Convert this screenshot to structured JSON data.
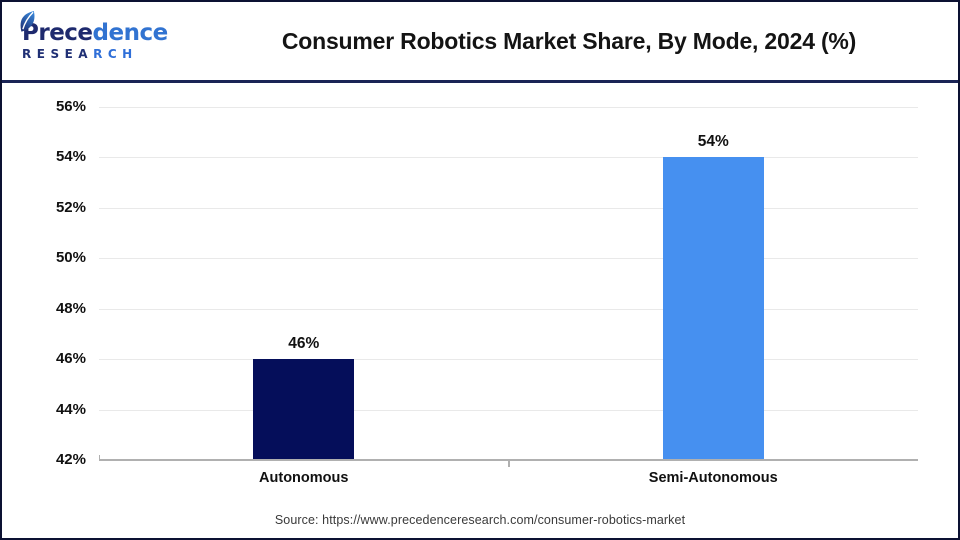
{
  "header": {
    "title": "Consumer Robotics Market Share, By Mode, 2024 (%)",
    "logo": {
      "word_dark": "Prece",
      "word_blue": "dence",
      "sub_dark": "RESEA",
      "sub_blue": "RCH",
      "color_dark": "#1e2a6e",
      "color_blue": "#3173d1"
    }
  },
  "chart_data": {
    "type": "bar",
    "title": "Consumer Robotics Market Share, By Mode, 2024 (%)",
    "categories": [
      "Autonomous",
      "Semi-Autonomous"
    ],
    "values": [
      46,
      54
    ],
    "value_labels": [
      "46%",
      "54%"
    ],
    "bar_colors": [
      "#050e5a",
      "#4690f0"
    ],
    "ylim": [
      42,
      56
    ],
    "ytick_step": 2,
    "ytick_labels": [
      "42%",
      "44%",
      "46%",
      "48%",
      "50%",
      "52%",
      "54%",
      "56%"
    ],
    "xlabel": "",
    "ylabel": "",
    "grid": true,
    "legend": false
  },
  "footer": {
    "source": "Source: https://www.precedenceresearch.com/consumer-robotics-market"
  }
}
